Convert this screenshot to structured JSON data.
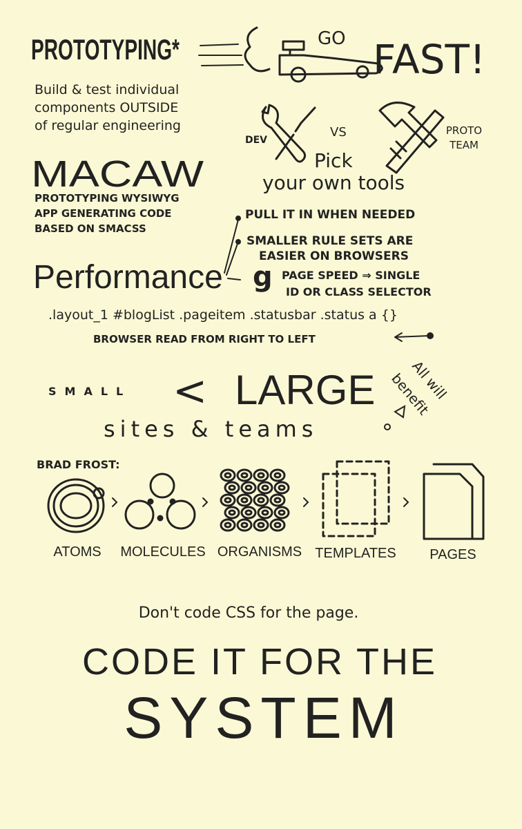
{
  "prototyping": {
    "title": "PROTOTYPING*",
    "go": "GO",
    "fast": "FAST!",
    "description": [
      "Build & test individual",
      "components OUTSIDE",
      "of regular engineering"
    ]
  },
  "tools": {
    "dev": "DEV",
    "vs": "VS",
    "proto_team": [
      "PROTO",
      "TEAM"
    ],
    "caption": [
      "Pick",
      "your own tools"
    ]
  },
  "macaw": {
    "title": "MACAW",
    "description": [
      "PROTOTYPING WYSIWYG",
      "APP GENERATING CODE",
      "BASED ON SMACSS"
    ]
  },
  "performance": {
    "title": "Performance",
    "bullets": [
      [
        "PULL IT IN WHEN NEEDED"
      ],
      [
        "SMALLER RULE SETS ARE",
        "EASIER ON BROWSERS"
      ]
    ],
    "google": "g",
    "page_speed": [
      "PAGE SPEED ⇒ SINGLE",
      "ID OR CLASS SELECTOR"
    ],
    "selector": ".layout_1 #blogList .pageitem .statusbar .status a {}",
    "note": "BROWSER READ FROM RIGHT TO LEFT"
  },
  "scale": {
    "small": "SMALL",
    "less_than": "<",
    "large": "LARGE",
    "subject": "sites & teams",
    "benefit": [
      "All will",
      "benefit"
    ]
  },
  "atomic": {
    "author": "BRAD FROST:",
    "stages": [
      "ATOMS",
      "MOLECULES",
      "ORGANISMS",
      "TEMPLATES",
      "PAGES"
    ]
  },
  "closing": {
    "lead": "Don't code CSS for the page.",
    "headline": "CODE IT FOR THE",
    "emphasis": "SYSTEM"
  }
}
